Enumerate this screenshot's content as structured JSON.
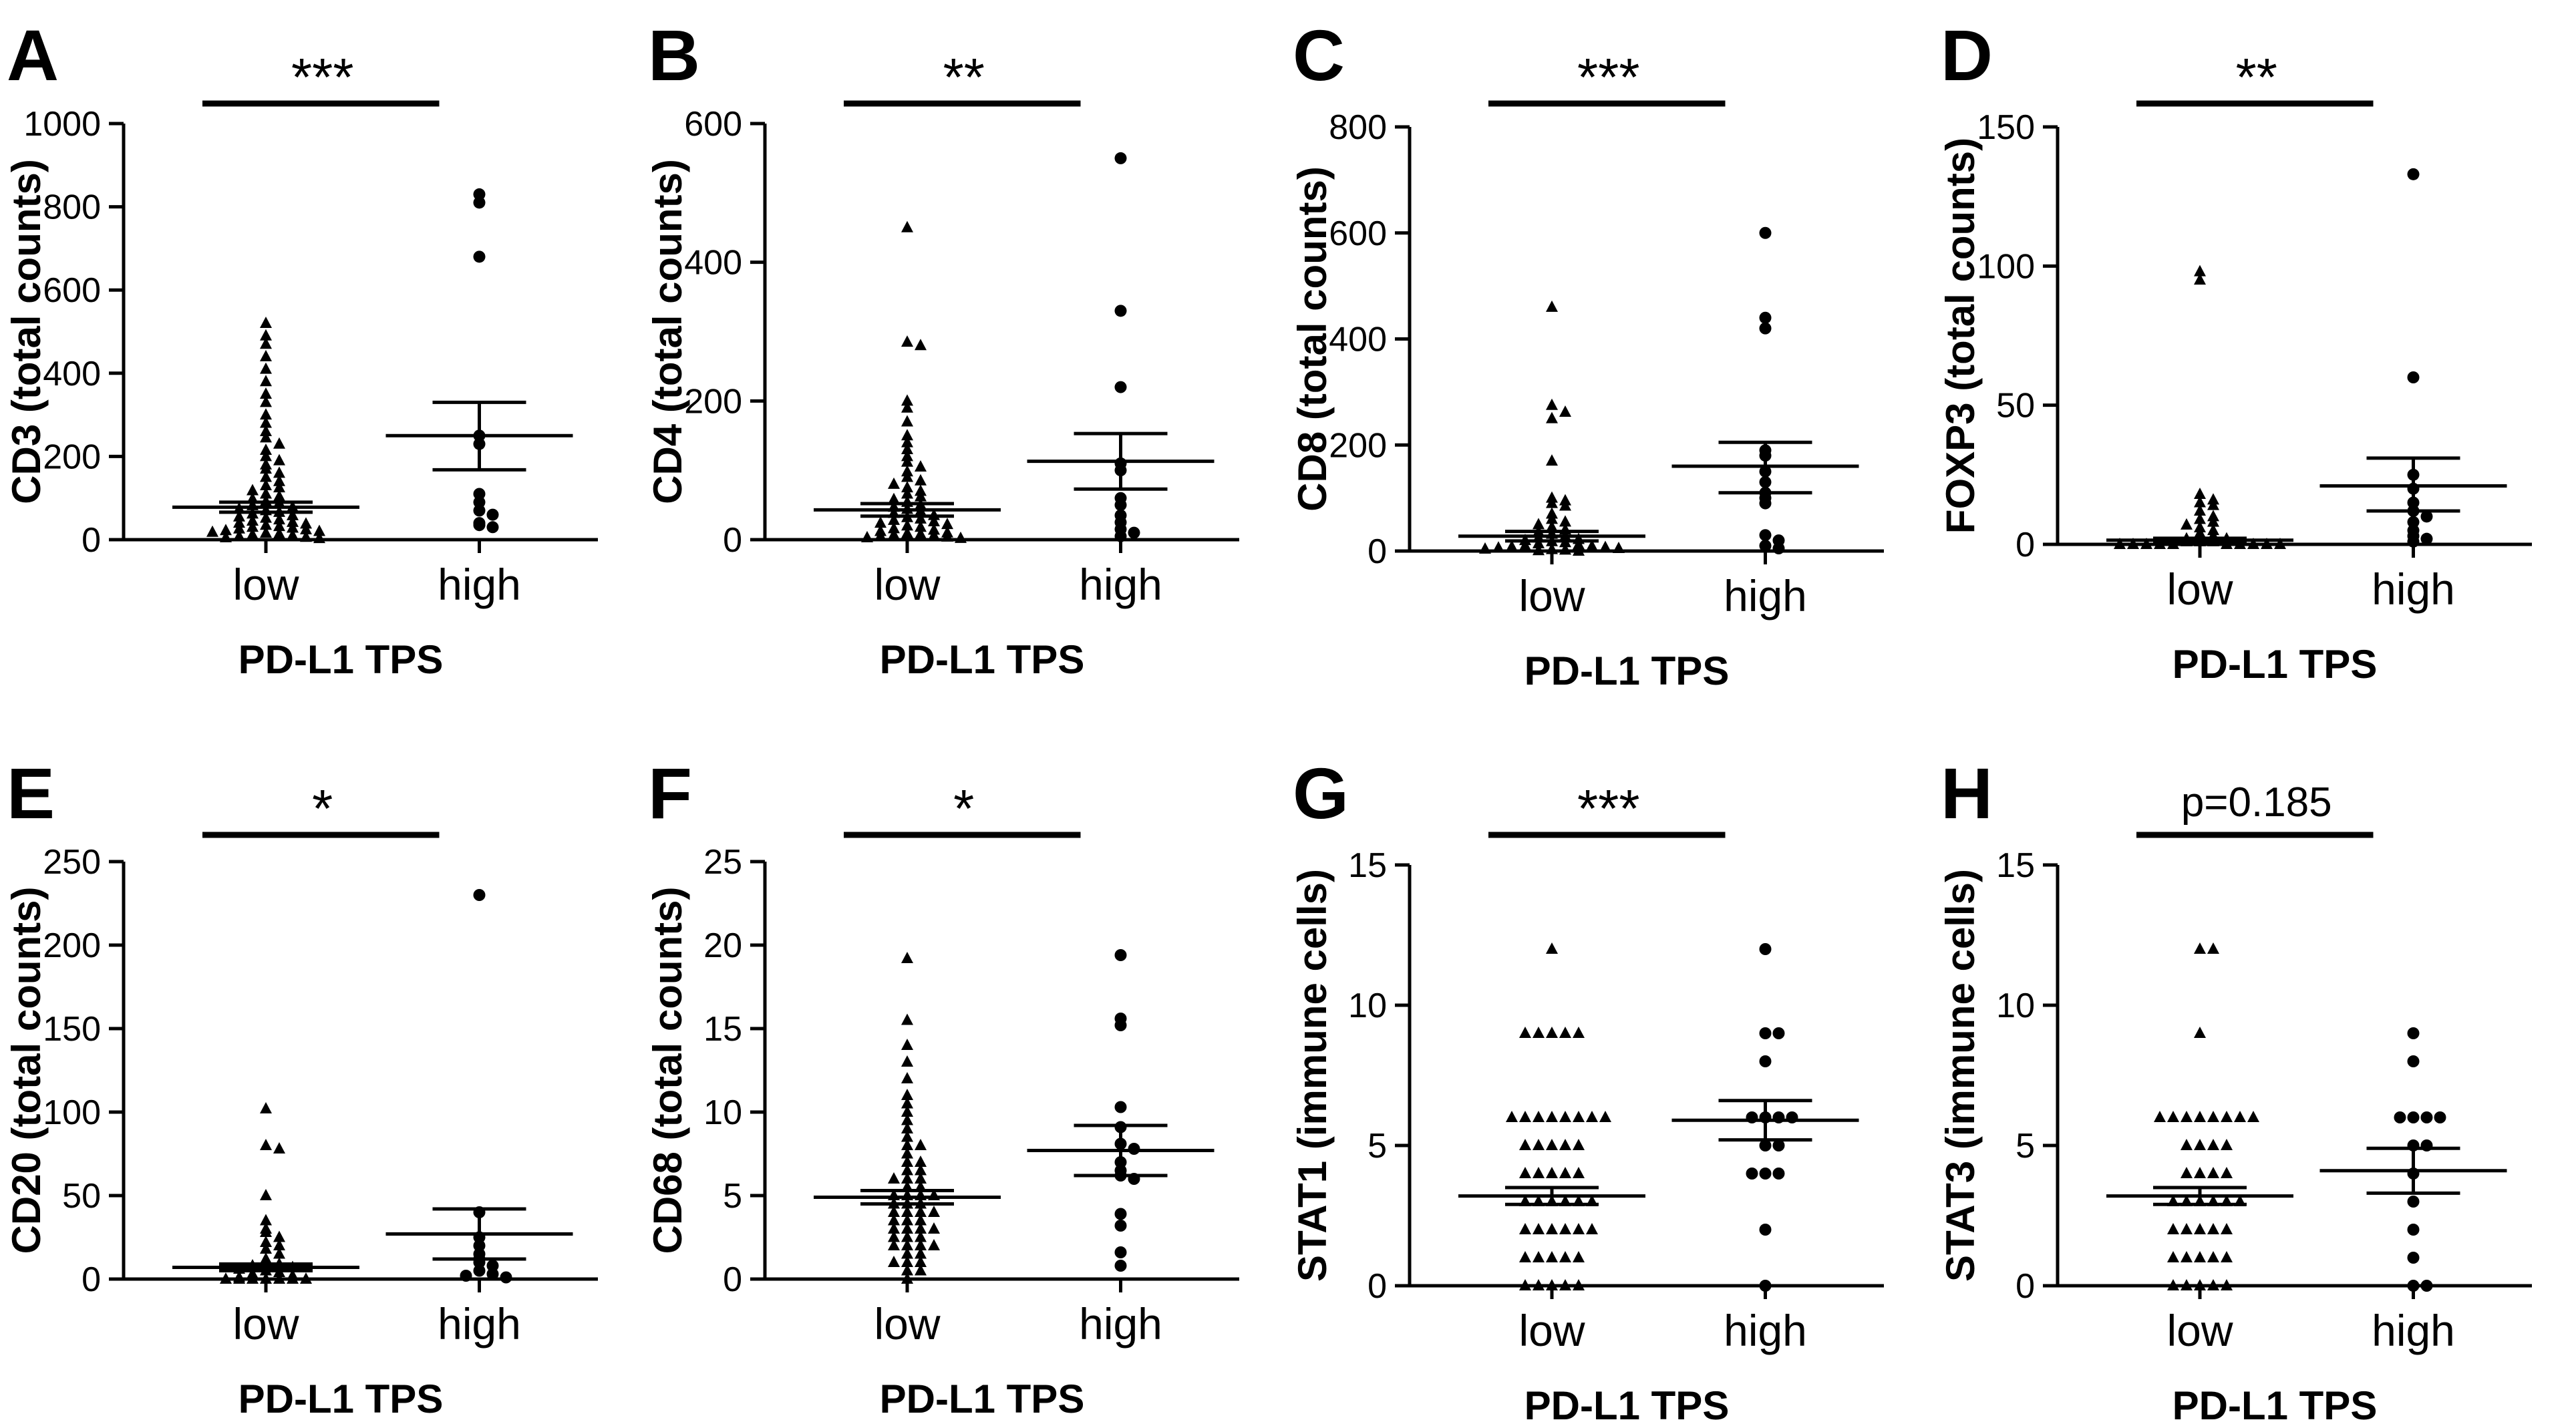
{
  "figure": {
    "description_hidden": false,
    "style": {
      "ink": "#000000",
      "background": "#ffffff"
    }
  },
  "chart_data": [
    {
      "panel": "A",
      "type": "scatter",
      "title": "",
      "ylabel": "CD3 (total counts)",
      "xlabel": "PD-L1 TPS",
      "categories": [
        "low",
        "high"
      ],
      "significance": "***",
      "ylim": [
        0,
        1000
      ],
      "yticks": [
        0,
        200,
        400,
        600,
        800,
        1000
      ],
      "grid": false,
      "series": [
        {
          "name": "low",
          "marker": "triangle",
          "mean": 78,
          "sem_upper": 90,
          "sem_lower": 66,
          "values": [
            520,
            490,
            470,
            440,
            410,
            380,
            350,
            330,
            300,
            280,
            260,
            245,
            230,
            215,
            200,
            190,
            180,
            170,
            160,
            150,
            140,
            130,
            125,
            118,
            110,
            104,
            98,
            92,
            88,
            82,
            78,
            74,
            70,
            66,
            62,
            58,
            55,
            52,
            48,
            45,
            42,
            40,
            38,
            35,
            32,
            30,
            28,
            26,
            24,
            22,
            20,
            18,
            16,
            14,
            12,
            10,
            8,
            6,
            5,
            3
          ]
        },
        {
          "name": "high",
          "marker": "circle",
          "mean": 250,
          "sem_upper": 330,
          "sem_lower": 168,
          "values": [
            830,
            810,
            680,
            250,
            230,
            110,
            90,
            70,
            60,
            40,
            35,
            30
          ]
        }
      ]
    },
    {
      "panel": "B",
      "type": "scatter",
      "title": "",
      "ylabel": "CD4 (total counts)",
      "xlabel": "PD-L1 TPS",
      "categories": [
        "low",
        "high"
      ],
      "significance": "**",
      "ylim": [
        0,
        600
      ],
      "yticks": [
        0,
        200,
        400,
        600
      ],
      "grid": false,
      "series": [
        {
          "name": "low",
          "marker": "triangle",
          "mean": 43,
          "sem_upper": 52,
          "sem_lower": 34,
          "values": [
            450,
            285,
            280,
            200,
            190,
            170,
            150,
            140,
            130,
            120,
            112,
            105,
            98,
            90,
            85,
            80,
            75,
            70,
            66,
            62,
            58,
            54,
            50,
            47,
            44,
            41,
            38,
            35,
            32,
            30,
            28,
            26,
            24,
            22,
            20,
            18,
            16,
            14,
            12,
            10,
            9,
            8,
            7,
            6,
            5,
            4,
            3,
            2
          ]
        },
        {
          "name": "high",
          "marker": "circle",
          "mean": 113,
          "sem_upper": 153,
          "sem_lower": 73,
          "values": [
            550,
            330,
            220,
            110,
            100,
            60,
            50,
            35,
            25,
            15,
            10,
            5
          ]
        }
      ]
    },
    {
      "panel": "C",
      "type": "scatter",
      "title": "",
      "ylabel": "CD8 (total counts)",
      "xlabel": "PD-L1 TPS",
      "categories": [
        "low",
        "high"
      ],
      "significance": "***",
      "ylim": [
        0,
        800
      ],
      "yticks": [
        0,
        200,
        400,
        600,
        800
      ],
      "grid": false,
      "series": [
        {
          "name": "low",
          "marker": "triangle",
          "mean": 28,
          "sem_upper": 37,
          "sem_lower": 19,
          "values": [
            460,
            275,
            262,
            250,
            170,
            100,
            95,
            90,
            85,
            70,
            60,
            55,
            50,
            45,
            40,
            36,
            32,
            28,
            25,
            22,
            20,
            18,
            16,
            14,
            12,
            10,
            9,
            8,
            7,
            6,
            5,
            4,
            3,
            2,
            1,
            0
          ]
        },
        {
          "name": "high",
          "marker": "circle",
          "mean": 160,
          "sem_upper": 205,
          "sem_lower": 110,
          "values": [
            600,
            440,
            420,
            190,
            180,
            150,
            130,
            110,
            100,
            90,
            30,
            20,
            10,
            5
          ]
        }
      ]
    },
    {
      "panel": "D",
      "type": "scatter",
      "title": "",
      "ylabel": "FOXP3 (total counts)",
      "xlabel": "PD-L1 TPS",
      "categories": [
        "low",
        "high"
      ],
      "significance": "**",
      "ylim": [
        0,
        150
      ],
      "yticks": [
        0,
        50,
        100,
        150
      ],
      "grid": false,
      "series": [
        {
          "name": "low",
          "marker": "triangle",
          "mean": 1.5,
          "sem_upper": 2.2,
          "sem_lower": 0.8,
          "values": [
            98,
            95,
            18,
            16,
            15,
            14,
            12,
            10,
            9,
            8,
            7,
            6,
            5,
            4,
            3,
            2,
            2,
            1,
            1,
            1,
            0,
            0,
            0,
            0,
            0,
            0,
            0,
            0,
            0,
            0
          ]
        },
        {
          "name": "high",
          "marker": "circle",
          "mean": 21,
          "sem_upper": 31,
          "sem_lower": 12,
          "values": [
            133,
            60,
            25,
            20,
            15,
            12,
            10,
            8,
            5,
            3,
            2,
            1
          ]
        }
      ]
    },
    {
      "panel": "E",
      "type": "scatter",
      "title": "",
      "ylabel": "CD20 (total counts)",
      "xlabel": "PD-L1 TPS",
      "categories": [
        "low",
        "high"
      ],
      "significance": "*",
      "ylim": [
        0,
        250
      ],
      "yticks": [
        0,
        50,
        100,
        150,
        200,
        250
      ],
      "grid": false,
      "series": [
        {
          "name": "low",
          "marker": "triangle",
          "mean": 7,
          "sem_upper": 9,
          "sem_lower": 5,
          "values": [
            102,
            80,
            78,
            50,
            35,
            30,
            28,
            25,
            22,
            20,
            18,
            15,
            12,
            10,
            9,
            8,
            7,
            6,
            5,
            4,
            3,
            2,
            1,
            0,
            0,
            0,
            0,
            0,
            0,
            0
          ]
        },
        {
          "name": "high",
          "marker": "circle",
          "mean": 27,
          "sem_upper": 42,
          "sem_lower": 12,
          "values": [
            230,
            40,
            25,
            20,
            15,
            12,
            10,
            8,
            5,
            3,
            2,
            1
          ]
        }
      ]
    },
    {
      "panel": "F",
      "type": "scatter",
      "title": "",
      "ylabel": "CD68 (total counts)",
      "xlabel": "PD-L1 TPS",
      "categories": [
        "low",
        "high"
      ],
      "significance": "*",
      "ylim": [
        0,
        25
      ],
      "yticks": [
        0,
        5,
        10,
        15,
        20,
        25
      ],
      "grid": false,
      "series": [
        {
          "name": "low",
          "marker": "triangle",
          "mean": 4.9,
          "sem_upper": 5.3,
          "sem_lower": 4.5,
          "values": [
            19.2,
            15.5,
            14,
            13,
            12,
            11,
            10.5,
            10,
            9.5,
            9,
            8.5,
            8,
            8,
            7.5,
            7,
            7,
            6.5,
            6.5,
            6,
            6,
            6,
            5.5,
            5.5,
            5,
            5,
            5,
            5,
            4.5,
            4.5,
            4.5,
            4,
            4,
            4,
            4,
            3.5,
            3.5,
            3.5,
            3,
            3,
            3,
            3,
            2.5,
            2.5,
            2.5,
            2,
            2,
            2,
            2,
            1.5,
            1.5,
            1,
            1,
            1,
            0.5,
            0.5,
            0
          ]
        },
        {
          "name": "high",
          "marker": "circle",
          "mean": 7.7,
          "sem_upper": 9.2,
          "sem_lower": 6.2,
          "values": [
            19.4,
            15.6,
            15.2,
            10.3,
            9.1,
            8.1,
            7.8,
            7,
            6.5,
            6.2,
            6,
            3.9,
            3.2,
            1.6,
            0.8
          ]
        }
      ]
    },
    {
      "panel": "G",
      "type": "scatter",
      "title": "",
      "ylabel": "STAT1 (immune cells)",
      "xlabel": "PD-L1 TPS",
      "categories": [
        "low",
        "high"
      ],
      "significance": "***",
      "ylim": [
        0,
        15
      ],
      "yticks": [
        0,
        5,
        10,
        15
      ],
      "grid": false,
      "series": [
        {
          "name": "low",
          "marker": "triangle",
          "mean": 3.2,
          "sem_upper": 3.5,
          "sem_lower": 2.9,
          "values": [
            12,
            9,
            9,
            9,
            9,
            9,
            6,
            6,
            6,
            6,
            6,
            6,
            6,
            6,
            5,
            5,
            5,
            5,
            5,
            4,
            4,
            4,
            4,
            4,
            3,
            3,
            3,
            3,
            3,
            3,
            2,
            2,
            2,
            2,
            2,
            2,
            1,
            1,
            1,
            1,
            1,
            0,
            0,
            0,
            0,
            0
          ]
        },
        {
          "name": "high",
          "marker": "circle",
          "mean": 5.9,
          "sem_upper": 6.6,
          "sem_lower": 5.2,
          "values": [
            12,
            9,
            9,
            8,
            6,
            6,
            6,
            6,
            5,
            5,
            4,
            4,
            4,
            2,
            0
          ]
        }
      ]
    },
    {
      "panel": "H",
      "type": "scatter",
      "title": "",
      "ylabel": "STAT3 (immune cells)",
      "xlabel": "PD-L1 TPS",
      "categories": [
        "low",
        "high"
      ],
      "significance": "p=0.185",
      "ylim": [
        0,
        15
      ],
      "yticks": [
        0,
        5,
        10,
        15
      ],
      "grid": false,
      "series": [
        {
          "name": "low",
          "marker": "triangle",
          "mean": 3.2,
          "sem_upper": 3.5,
          "sem_lower": 2.9,
          "values": [
            12,
            12,
            9,
            6,
            6,
            6,
            6,
            6,
            6,
            6,
            6,
            5,
            5,
            5,
            5,
            4,
            4,
            4,
            4,
            3,
            3,
            3,
            3,
            3,
            3,
            2,
            2,
            2,
            2,
            2,
            1,
            1,
            1,
            1,
            1,
            0,
            0,
            0,
            0,
            0
          ]
        },
        {
          "name": "high",
          "marker": "circle",
          "mean": 4.1,
          "sem_upper": 4.9,
          "sem_lower": 3.3,
          "values": [
            9,
            8,
            6,
            6,
            6,
            6,
            5,
            5,
            4,
            3,
            2,
            1,
            0,
            0
          ]
        }
      ]
    }
  ]
}
